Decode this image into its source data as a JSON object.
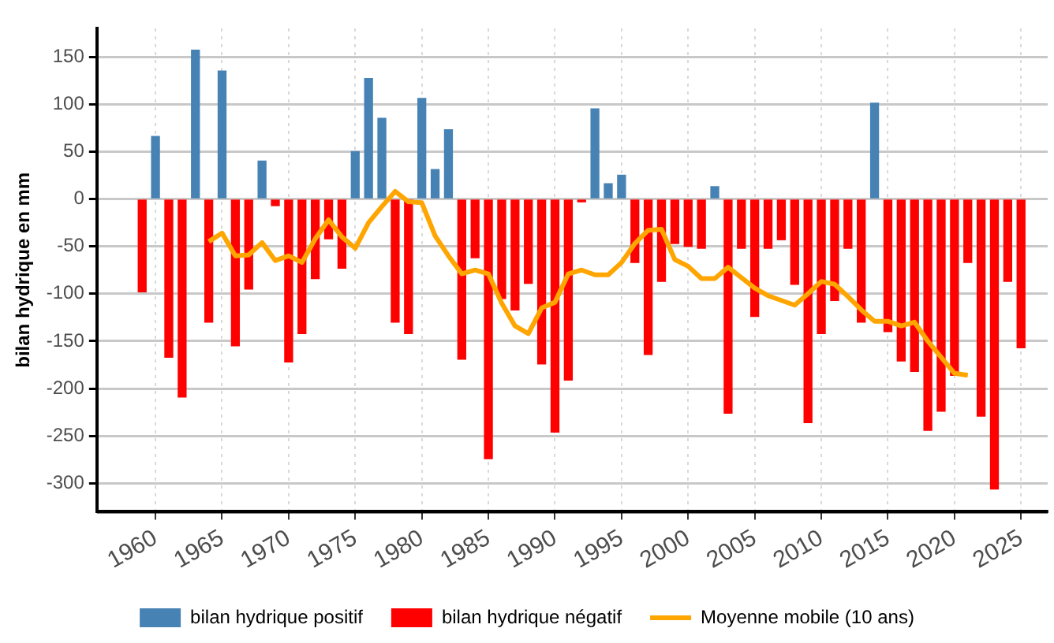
{
  "chart_data": {
    "type": "bar",
    "ylabel": "bilan hydrique en mm",
    "x": [
      1959,
      1960,
      1961,
      1962,
      1963,
      1964,
      1965,
      1966,
      1967,
      1968,
      1969,
      1970,
      1971,
      1972,
      1973,
      1974,
      1975,
      1976,
      1977,
      1978,
      1979,
      1980,
      1981,
      1982,
      1983,
      1984,
      1985,
      1986,
      1987,
      1988,
      1989,
      1990,
      1991,
      1992,
      1993,
      1994,
      1995,
      1996,
      1997,
      1998,
      1999,
      2000,
      2001,
      2002,
      2003,
      2004,
      2005,
      2006,
      2007,
      2008,
      2009,
      2010,
      2011,
      2012,
      2013,
      2014,
      2015,
      2016,
      2017,
      2018,
      2019,
      2020,
      2021,
      2022,
      2023,
      2024,
      2025
    ],
    "series": [
      {
        "name": "bilan hydrique positif",
        "color": "#4682b4",
        "values": [
          null,
          66,
          null,
          null,
          157,
          null,
          135,
          null,
          null,
          40,
          null,
          null,
          null,
          null,
          null,
          null,
          50,
          127,
          85,
          null,
          null,
          106,
          31,
          73,
          null,
          null,
          null,
          null,
          null,
          null,
          null,
          null,
          null,
          null,
          95,
          16,
          25,
          null,
          null,
          null,
          null,
          null,
          null,
          13,
          null,
          null,
          null,
          null,
          null,
          null,
          null,
          null,
          null,
          null,
          null,
          101,
          null,
          null,
          null,
          null,
          null,
          null,
          null,
          null,
          null,
          null,
          null
        ]
      },
      {
        "name": "bilan hydrique négatif",
        "color": "#ff0000",
        "values": [
          -98,
          null,
          -167,
          -209,
          null,
          -130,
          null,
          -155,
          -95,
          null,
          -7,
          -172,
          -142,
          -84,
          -42,
          -73,
          null,
          null,
          null,
          -130,
          -142,
          null,
          null,
          null,
          -169,
          -62,
          -274,
          -105,
          -117,
          -89,
          -174,
          -246,
          -191,
          -3,
          null,
          null,
          null,
          -67,
          -164,
          -87,
          -47,
          -50,
          -52,
          null,
          -226,
          -52,
          -124,
          -52,
          -43,
          -90,
          -236,
          -142,
          -107,
          -52,
          -130,
          null,
          -140,
          -171,
          -182,
          -244,
          -224,
          -186,
          -67,
          -229,
          -306,
          -87,
          -157
        ]
      },
      {
        "name": "Moyenne mobile (10 ans)",
        "type": "line",
        "color": "#ffa500",
        "x": [
          1964,
          1965,
          1966,
          1967,
          1968,
          1969,
          1970,
          1971,
          1972,
          1973,
          1974,
          1975,
          1976,
          1977,
          1978,
          1979,
          1980,
          1981,
          1982,
          1983,
          1984,
          1985,
          1986,
          1987,
          1988,
          1989,
          1990,
          1991,
          1992,
          1993,
          1994,
          1995,
          1996,
          1997,
          1998,
          1999,
          2000,
          2001,
          2002,
          2003,
          2004,
          2005,
          2006,
          2007,
          2008,
          2009,
          2010,
          2011,
          2012,
          2013,
          2014,
          2015,
          2016,
          2017,
          2018,
          2019,
          2020,
          2021
        ],
        "values": [
          -45,
          -36,
          -60,
          -59,
          -46,
          -65,
          -60,
          -67,
          -42,
          -22,
          -40,
          -52,
          -25,
          -8,
          8,
          -3,
          -4,
          -39,
          -60,
          -79,
          -75,
          -79,
          -110,
          -134,
          -142,
          -115,
          -109,
          -79,
          -75,
          -80,
          -80,
          -67,
          -47,
          -33,
          -32,
          -64,
          -71,
          -84,
          -84,
          -72,
          -83,
          -94,
          -102,
          -107,
          -112,
          -100,
          -87,
          -90,
          -103,
          -117,
          -129,
          -129,
          -134,
          -130,
          -150,
          -167,
          -184,
          -186
        ]
      }
    ],
    "xlim": [
      1955.6,
      2027
    ],
    "xticks": [
      1960,
      1965,
      1970,
      1975,
      1980,
      1985,
      1990,
      1995,
      2000,
      2005,
      2010,
      2015,
      2020,
      2025
    ],
    "ylim": [
      -330,
      180
    ],
    "yticks": [
      -300,
      -250,
      -200,
      -150,
      -100,
      -50,
      0,
      50,
      100,
      150
    ],
    "grid": true,
    "legend": "bottom",
    "marker": "none"
  }
}
